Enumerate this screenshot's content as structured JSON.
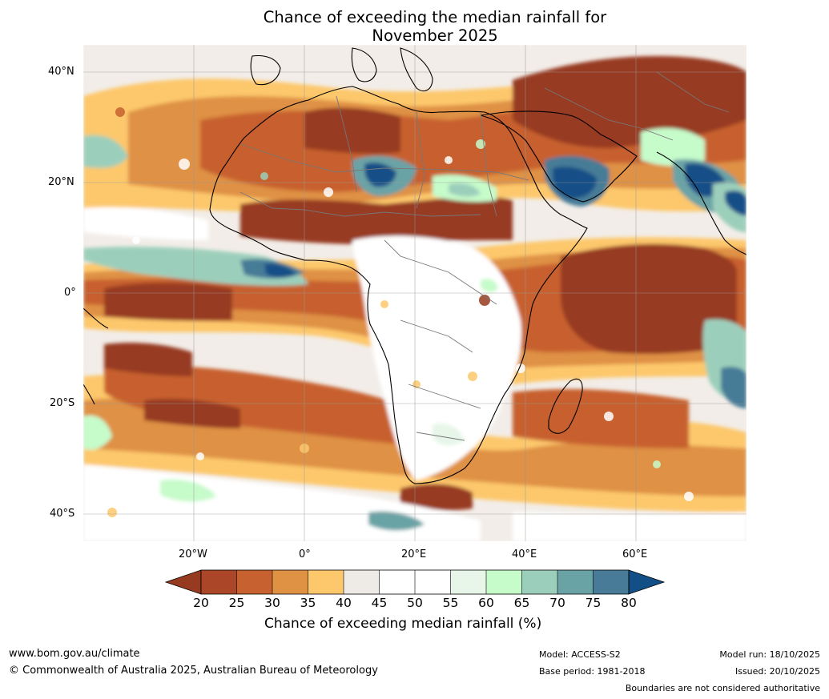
{
  "title": {
    "line1": "Chance of exceeding the median rainfall for",
    "line2": "November 2025"
  },
  "map": {
    "lat_labels": [
      "40°N",
      "20°N",
      "0°",
      "20°S",
      "40°S"
    ],
    "lon_labels": [
      "20°W",
      "0°",
      "20°E",
      "40°E",
      "60°E"
    ]
  },
  "colorbar": {
    "ticks": [
      "20",
      "25",
      "30",
      "35",
      "40",
      "45",
      "50",
      "55",
      "60",
      "65",
      "70",
      "75",
      "80"
    ],
    "colors": [
      "#973b20",
      "#ac4628",
      "#c7612f",
      "#df9144",
      "#fdc86c",
      "#eeebe7",
      "#ffffff",
      "#ffffff",
      "#e7f6e8",
      "#c6fbca",
      "#9ccfbb",
      "#6aa3a6",
      "#477b97",
      "#134f87"
    ],
    "title": "Chance of exceeding median rainfall (%)"
  },
  "footer": {
    "website": "www.bom.gov.au/climate",
    "copyright": "© Commonwealth of Australia 2025, Australian Bureau of Meteorology",
    "model": "Model: ACCESS-S2",
    "base_period": "Base period: 1981-2018",
    "model_run": "Model run: 18/10/2025",
    "issued": "Issued: 20/10/2025",
    "disclaimer": "Boundaries are not considered authoritative"
  }
}
